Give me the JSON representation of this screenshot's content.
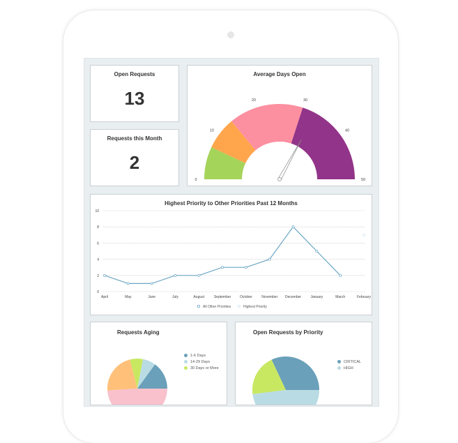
{
  "kpis": {
    "open_requests": {
      "label": "Open Requests",
      "value": "13"
    },
    "requests_month": {
      "label": "Requests this Month",
      "value": "2"
    }
  },
  "chart_data": [
    {
      "type": "gauge",
      "title": "Average Days Open",
      "min": 0,
      "max": 50,
      "ticks": [
        "0",
        "10",
        "20",
        "30",
        "40",
        "50"
      ],
      "bands": [
        {
          "from": 0,
          "to": 7,
          "color": "#a5d45a"
        },
        {
          "from": 7,
          "to": 14,
          "color": "#ffa64d"
        },
        {
          "from": 14,
          "to": 30,
          "color": "#fc8fa0"
        },
        {
          "from": 30,
          "to": 50,
          "color": "#923489"
        }
      ],
      "value": 33
    },
    {
      "type": "line",
      "title": "Highest Priority to Other Priorities Past 12 Months",
      "categories": [
        "April",
        "May",
        "June",
        "July",
        "August",
        "September",
        "October",
        "November",
        "December",
        "January",
        "March",
        "February"
      ],
      "ylim": [
        0,
        10
      ],
      "yticks": [
        "0",
        "2",
        "4",
        "6",
        "8",
        "10"
      ],
      "grid": true,
      "legend": "bottom",
      "series": [
        {
          "name": "All Other Priorities",
          "color": "#6aa6c4",
          "values": [
            2,
            1,
            1,
            2,
            2,
            3,
            3,
            4,
            8,
            5,
            2,
            null
          ]
        },
        {
          "name": "Highest Priority",
          "color": "#cfe5ee",
          "values": [
            null,
            null,
            null,
            null,
            null,
            null,
            null,
            null,
            null,
            null,
            null,
            7
          ]
        }
      ]
    },
    {
      "type": "pie",
      "title": "Requests Aging",
      "legend": "right",
      "slices": [
        {
          "name": "1-6 Days",
          "value": 15,
          "color": "#6aa0b9"
        },
        {
          "name": "14-29 Days",
          "value": 7,
          "color": "#b9dbe4"
        },
        {
          "name": "30 Days or More",
          "value": 7,
          "color": "#c8e862"
        },
        {
          "name": "",
          "value": 22,
          "color": "#ffc07a"
        },
        {
          "name": "",
          "value": 49,
          "color": "#f8c1cc"
        }
      ]
    },
    {
      "type": "pie",
      "title": "Open Requests by Priority",
      "legend": "right",
      "slices": [
        {
          "name": "CRITICAL",
          "value": 32,
          "color": "#6aa0b9"
        },
        {
          "name": "",
          "value": 20,
          "color": "#c8e862"
        },
        {
          "name": "HIGH",
          "value": 48,
          "color": "#b9dbe4"
        }
      ]
    }
  ]
}
